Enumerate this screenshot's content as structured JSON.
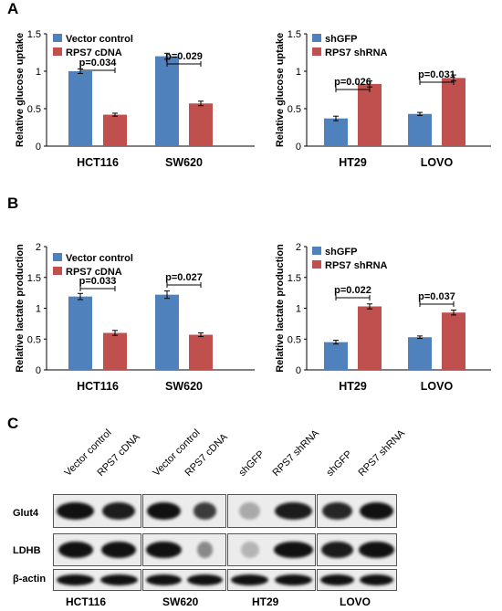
{
  "panels": {
    "A": "A",
    "B": "B",
    "C": "C"
  },
  "chart_data": [
    {
      "type": "bar",
      "panel": "A",
      "ylabel": "Relative glucose uptake",
      "ylim": [
        0,
        1.5
      ],
      "yticks": [
        "0",
        "0.5",
        "1",
        "1.5"
      ],
      "categories": [
        "HCT116",
        "SW620"
      ],
      "series": [
        {
          "name": "Vector control",
          "color": "#4f81bd",
          "values": [
            1.0,
            1.2
          ],
          "errors": [
            0.03,
            0.04
          ]
        },
        {
          "name": "RPS7 cDNA",
          "color": "#c0504d",
          "values": [
            0.42,
            0.57
          ],
          "errors": [
            0.02,
            0.03
          ]
        }
      ],
      "annotations": [
        "p=0.034",
        "p=0.029"
      ]
    },
    {
      "type": "bar",
      "panel": "A",
      "ylabel": "Relative glucose uptake",
      "ylim": [
        0,
        1.5
      ],
      "yticks": [
        "0",
        "0.5",
        "1",
        "1.5"
      ],
      "categories": [
        "HT29",
        "LOVO"
      ],
      "series": [
        {
          "name": "shGFP",
          "color": "#4f81bd",
          "values": [
            0.37,
            0.43
          ],
          "errors": [
            0.03,
            0.02
          ]
        },
        {
          "name": "RPS7 shRNA",
          "color": "#c0504d",
          "values": [
            0.83,
            0.91
          ],
          "errors": [
            0.04,
            0.04
          ]
        }
      ],
      "annotations": [
        "p=0.026",
        "p=0.031"
      ]
    },
    {
      "type": "bar",
      "panel": "B",
      "ylabel": "Relative lactate production",
      "ylim": [
        0,
        2
      ],
      "yticks": [
        "0",
        "0.5",
        "1",
        "1.5",
        "2"
      ],
      "categories": [
        "HCT116",
        "SW620"
      ],
      "series": [
        {
          "name": "Vector control",
          "color": "#4f81bd",
          "values": [
            1.19,
            1.22
          ],
          "errors": [
            0.05,
            0.06
          ]
        },
        {
          "name": "RPS7 cDNA",
          "color": "#c0504d",
          "values": [
            0.6,
            0.57
          ],
          "errors": [
            0.04,
            0.03
          ]
        }
      ],
      "annotations": [
        "p=0.033",
        "p=0.027"
      ]
    },
    {
      "type": "bar",
      "panel": "B",
      "ylabel": "Relative lactate production",
      "ylim": [
        0,
        2
      ],
      "yticks": [
        "0",
        "0.5",
        "1",
        "1.5",
        "2"
      ],
      "categories": [
        "HT29",
        "LOVO"
      ],
      "series": [
        {
          "name": "shGFP",
          "color": "#4f81bd",
          "values": [
            0.45,
            0.53
          ],
          "errors": [
            0.03,
            0.02
          ]
        },
        {
          "name": "RPS7 shRNA",
          "color": "#c0504d",
          "values": [
            1.03,
            0.93
          ],
          "errors": [
            0.04,
            0.04
          ]
        }
      ],
      "annotations": [
        "p=0.022",
        "p=0.037"
      ]
    }
  ],
  "western": {
    "lanes": [
      "Vector control",
      "RPS7 cDNA",
      "Vector control",
      "RPS7 cDNA",
      "shGFP",
      "RPS7 shRNA",
      "shGFP",
      "RPS7 shRNA"
    ],
    "proteins": [
      "Glut4",
      "LDHB",
      "β-actin"
    ],
    "cell_lines": [
      "HCT116",
      "SW620",
      "HT29",
      "LOVO"
    ]
  }
}
